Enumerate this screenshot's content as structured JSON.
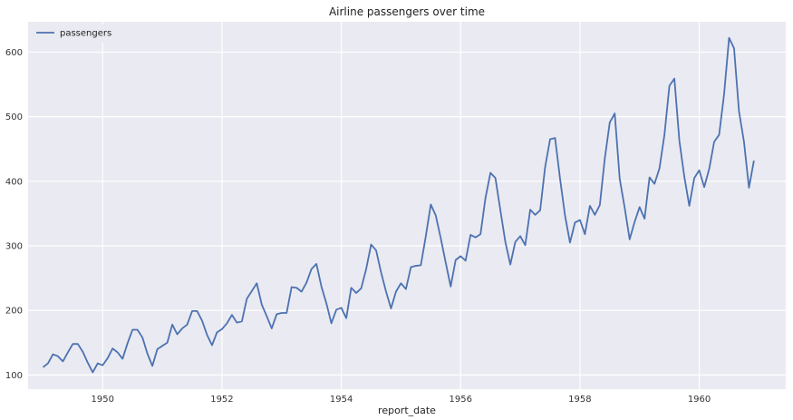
{
  "chart_data": {
    "type": "line",
    "title": "Airline passengers over time",
    "xlabel": "report_date",
    "ylabel": "",
    "xlim": [
      1948.75,
      1961.45
    ],
    "ylim": [
      78,
      647
    ],
    "x_ticks": [
      1950,
      1952,
      1954,
      1956,
      1958,
      1960
    ],
    "y_ticks": [
      100,
      200,
      300,
      400,
      500,
      600
    ],
    "grid": true,
    "legend": {
      "position": "top-left",
      "entries": [
        "passengers"
      ]
    },
    "series": [
      {
        "name": "passengers",
        "color": "#4c72b0",
        "start_year": 1949,
        "frequency": "monthly",
        "values": [
          112,
          118,
          132,
          129,
          121,
          135,
          148,
          148,
          136,
          119,
          104,
          118,
          115,
          126,
          141,
          135,
          125,
          149,
          170,
          170,
          158,
          133,
          114,
          140,
          145,
          150,
          178,
          163,
          172,
          178,
          199,
          199,
          184,
          162,
          146,
          166,
          171,
          180,
          193,
          181,
          183,
          218,
          230,
          242,
          209,
          191,
          172,
          194,
          196,
          196,
          236,
          235,
          229,
          243,
          264,
          272,
          237,
          211,
          180,
          201,
          204,
          188,
          235,
          227,
          234,
          264,
          302,
          293,
          259,
          229,
          203,
          229,
          242,
          233,
          267,
          269,
          270,
          315,
          364,
          347,
          312,
          274,
          237,
          278,
          284,
          277,
          317,
          313,
          318,
          374,
          413,
          405,
          355,
          306,
          271,
          306,
          315,
          301,
          356,
          348,
          355,
          422,
          465,
          467,
          404,
          347,
          305,
          336,
          340,
          318,
          362,
          348,
          363,
          435,
          491,
          505,
          404,
          359,
          310,
          337,
          360,
          342,
          406,
          396,
          420,
          472,
          548,
          559,
          463,
          407,
          362,
          405,
          417,
          391,
          419,
          461,
          472,
          535,
          622,
          606,
          508,
          461,
          390,
          432
        ]
      }
    ]
  },
  "colors": {
    "background": "#eaeaf2",
    "grid": "#ffffff",
    "line": "#4c72b0"
  }
}
